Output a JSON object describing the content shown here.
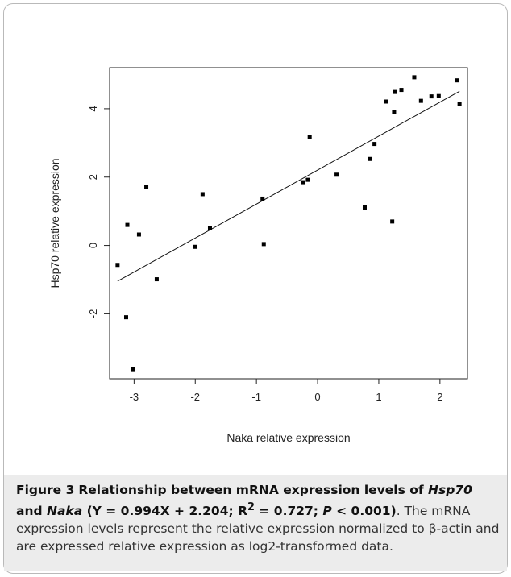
{
  "chart_data": {
    "type": "scatter",
    "xlabel": "Naka relative expression",
    "ylabel": "Hsp70 relative expression",
    "xlim": [
      -3.4,
      2.45
    ],
    "ylim": [
      -3.9,
      5.2
    ],
    "xticks": [
      -3,
      -2,
      -1,
      0,
      1,
      2
    ],
    "yticks": [
      -2,
      0,
      2,
      4
    ],
    "grid": false,
    "points": [
      {
        "x": -3.27,
        "y": -0.57
      },
      {
        "x": -3.13,
        "y": -2.1
      },
      {
        "x": -3.11,
        "y": 0.6
      },
      {
        "x": -3.02,
        "y": -3.62
      },
      {
        "x": -2.92,
        "y": 0.32
      },
      {
        "x": -2.8,
        "y": 1.72
      },
      {
        "x": -2.63,
        "y": -0.99
      },
      {
        "x": -2.01,
        "y": -0.04
      },
      {
        "x": -1.88,
        "y": 1.5
      },
      {
        "x": -1.76,
        "y": 0.52
      },
      {
        "x": -0.9,
        "y": 1.37
      },
      {
        "x": -0.88,
        "y": 0.04
      },
      {
        "x": -0.24,
        "y": 1.85
      },
      {
        "x": -0.16,
        "y": 1.92
      },
      {
        "x": -0.13,
        "y": 3.17
      },
      {
        "x": 0.31,
        "y": 2.07
      },
      {
        "x": 0.77,
        "y": 1.11
      },
      {
        "x": 0.86,
        "y": 2.53
      },
      {
        "x": 0.93,
        "y": 2.97
      },
      {
        "x": 1.12,
        "y": 4.21
      },
      {
        "x": 1.22,
        "y": 0.7
      },
      {
        "x": 1.25,
        "y": 3.91
      },
      {
        "x": 1.27,
        "y": 4.49
      },
      {
        "x": 1.37,
        "y": 4.55
      },
      {
        "x": 1.58,
        "y": 4.92
      },
      {
        "x": 1.69,
        "y": 4.23
      },
      {
        "x": 1.86,
        "y": 4.36
      },
      {
        "x": 1.98,
        "y": 4.37
      },
      {
        "x": 2.28,
        "y": 4.83
      },
      {
        "x": 2.32,
        "y": 4.15
      }
    ],
    "fit_line": {
      "slope": 0.994,
      "intercept": 2.204,
      "x_start": -3.27,
      "x_end": 2.32
    }
  },
  "caption": {
    "figure_label": "Figure 3",
    "title_before_gene1": "Relationship between mRNA expression levels of ",
    "gene1": "Hsp70",
    "and_text": "and ",
    "gene2": "Naka",
    "stats_1": " (Y = 0.994X + 2.204; R",
    "r_sup": "2",
    "stats_2": " = 0.727; ",
    "p_italic": "P",
    "stats_3": " < 0.001)",
    "body": ". The mRNA expression levels represent the relative expression normalized to β-actin and are expressed relative expression as log2-transformed data."
  }
}
